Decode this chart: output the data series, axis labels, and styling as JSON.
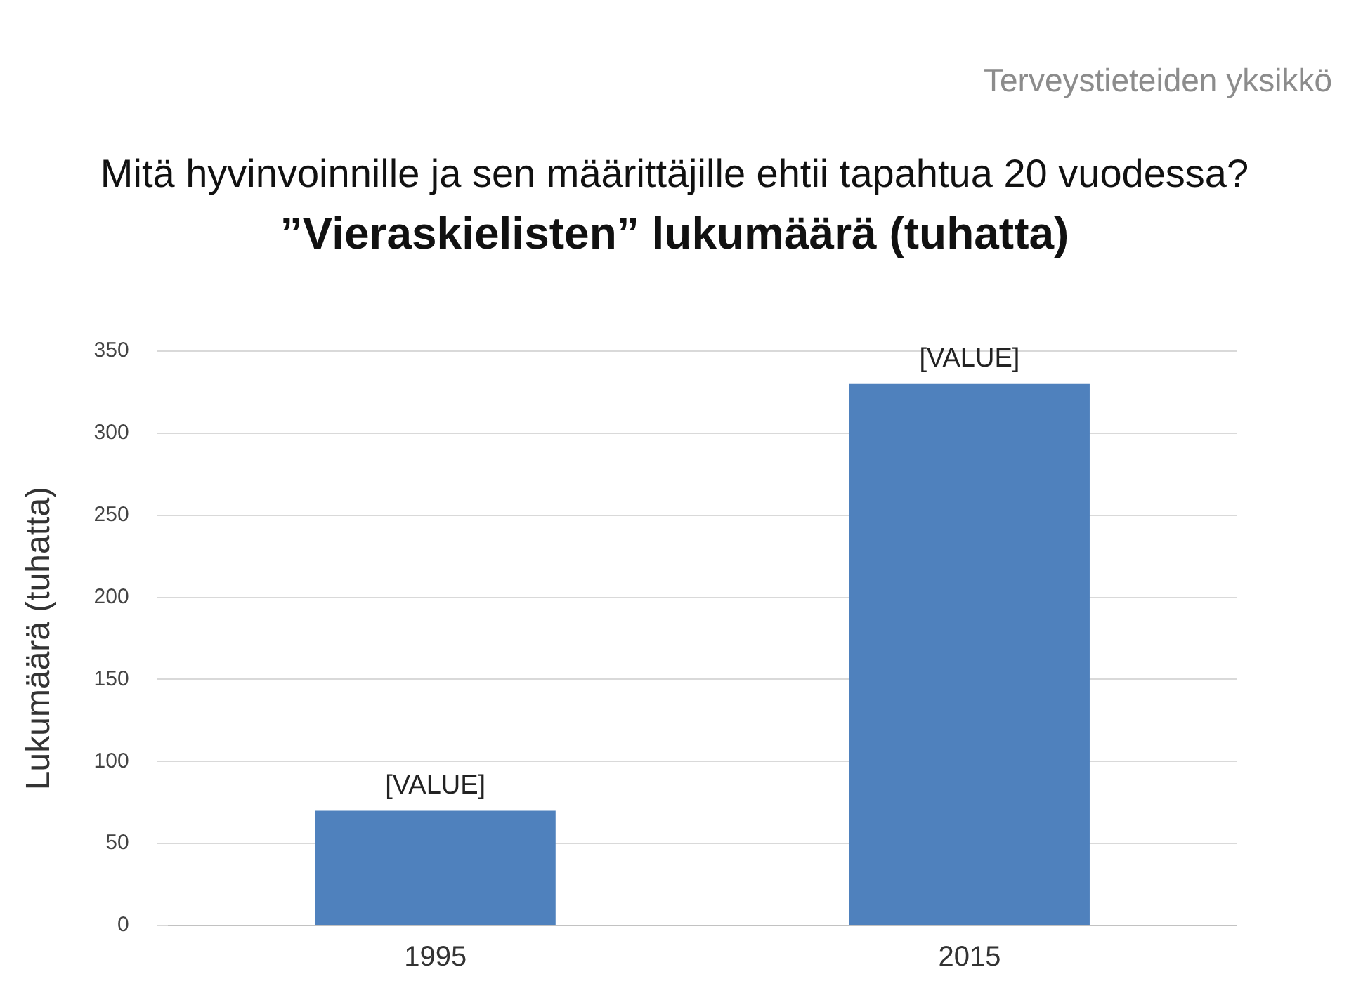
{
  "chart_data": {
    "type": "bar",
    "title": "Mitä hyvinvoinnille ja sen määrittäjille ehtii tapahtua 20 vuodessa?",
    "subtitle": "”Vieraskielisten” lukumäärä (tuhatta)",
    "annotations": [
      "Terveystieteiden yksikkö"
    ],
    "ylabel": "Lukumäärä (tuhatta)",
    "categories": [
      "1995",
      "2015"
    ],
    "values": [
      70,
      330
    ],
    "color": "#4f81bd",
    "value_labels": [
      "[VALUE]",
      "[VALUE]"
    ],
    "ylim": [
      0,
      350
    ],
    "yticks": [
      0,
      50,
      100,
      150,
      200,
      250,
      300,
      350
    ],
    "grid": "y",
    "legend": false
  }
}
